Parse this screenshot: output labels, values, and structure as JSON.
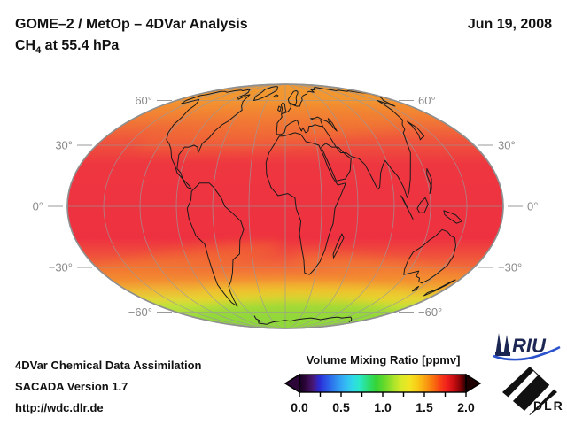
{
  "header": {
    "title": "GOME–2 / MetOp – 4DVar Analysis",
    "species_prefix": "CH",
    "species_sub": "4",
    "subtitle_rest": " at 55.4 hPa",
    "date": "Jun 19, 2008"
  },
  "map": {
    "projection": "Mollweide-style global ellipse",
    "lat_labels": [
      {
        "lat": 60,
        "text": "60°"
      },
      {
        "lat": 30,
        "text": "30°"
      },
      {
        "lat": 0,
        "text": "0°"
      },
      {
        "lat": -30,
        "text": "−30°"
      },
      {
        "lat": -60,
        "text": "−60°"
      }
    ],
    "lon_spacing_deg": 30,
    "colors": {
      "coastline": "#1a1a1a",
      "graticule": "#9a9a9a",
      "outline": "#8f8f8f",
      "label_gray": "#8a8a8a",
      "north_band": "#f29a30",
      "tropics_band": "#ee3140",
      "antarctic_band": "#99da44"
    }
  },
  "colorbar": {
    "title": "Volume Mixing Ratio [ppmv]",
    "tick_labels": [
      "0.0",
      "0.5",
      "1.0",
      "1.5",
      "2.0"
    ]
  },
  "credits": {
    "line1": "4DVar Chemical Data Assimilation",
    "line2": "SACADA Version 1.7",
    "line3": "http://wdc.dlr.de"
  },
  "logos": {
    "riu_text": "RIU",
    "dlr_text": "DLR",
    "riu_navy": "#1b2653",
    "riu_wave_blue": "#2a52cc"
  },
  "chart_data": {
    "type": "heatmap",
    "title": "GOME–2 / MetOp – 4DVar Analysis",
    "subtitle": "CH4 at 55.4 hPa",
    "date": "Jun 19, 2008",
    "variable": "CH4 volume mixing ratio",
    "pressure_level": "55.4 hPa",
    "units": "ppmv",
    "projection": "Mollweide (global)",
    "colorbar": {
      "label": "Volume Mixing Ratio [ppmv]",
      "min": 0.0,
      "max": 2.0,
      "ticks": [
        0.0,
        0.5,
        1.0,
        1.5,
        2.0
      ],
      "minor_tick_step": 0.25,
      "overflow_arrows": true,
      "palette": [
        "#15001d",
        "#491775",
        "#2b2bd4",
        "#2f8cf0",
        "#35b5f5",
        "#2fd8e8",
        "#35d435",
        "#a2e22a",
        "#f2e522",
        "#f8c916",
        "#fa9c12",
        "#f73c16",
        "#ee1c1c",
        "#c40d10",
        "#7a0206",
        "#260000"
      ]
    },
    "graticule": {
      "lat_lines_deg": [
        60,
        30,
        0,
        -30,
        -60
      ],
      "lon_spacing_deg": 30
    },
    "zonal_mean_profile": [
      {
        "lat": 85,
        "value": 1.55
      },
      {
        "lat": 70,
        "value": 1.58
      },
      {
        "lat": 55,
        "value": 1.65
      },
      {
        "lat": 40,
        "value": 1.72
      },
      {
        "lat": 20,
        "value": 1.75
      },
      {
        "lat": 0,
        "value": 1.75
      },
      {
        "lat": -20,
        "value": 1.72
      },
      {
        "lat": -40,
        "value": 1.62
      },
      {
        "lat": -50,
        "value": 1.5
      },
      {
        "lat": -60,
        "value": 1.35
      },
      {
        "lat": -70,
        "value": 1.15
      },
      {
        "lat": -85,
        "value": 1.05
      }
    ]
  }
}
